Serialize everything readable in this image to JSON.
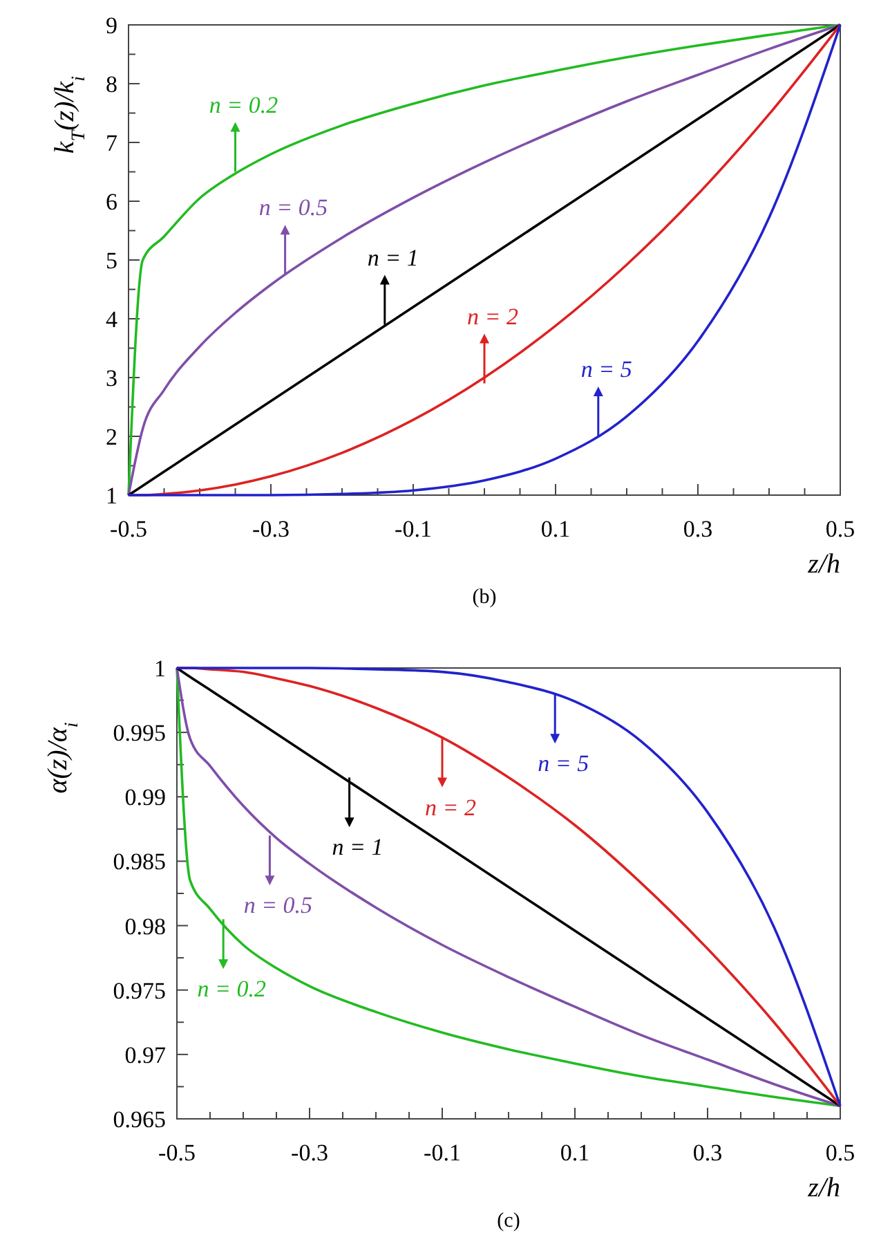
{
  "chart_data": [
    {
      "type": "line",
      "xlabel": "z/h",
      "ylabel": "k$_{T}$(z)/k$_{i}$",
      "x": [
        -0.5,
        -0.48,
        -0.45,
        -0.4,
        -0.35,
        -0.3,
        -0.2,
        -0.1,
        0,
        0.1,
        0.2,
        0.3,
        0.4,
        0.5
      ],
      "xlim": [
        -0.5,
        0.5
      ],
      "ylim": [
        1,
        9
      ],
      "xticks": [
        -0.5,
        {
          "value": -0.45,
          "label": null
        },
        {
          "value": -0.4,
          "label": null
        },
        {
          "value": -0.35,
          "label": null
        },
        -0.3,
        {
          "value": -0.25,
          "label": null
        },
        {
          "value": -0.2,
          "label": null
        },
        {
          "value": -0.15,
          "label": null
        },
        -0.1,
        {
          "value": -0.05,
          "label": null
        },
        {
          "value": 0,
          "label": null
        },
        {
          "value": 0.05,
          "label": null
        },
        0.1,
        {
          "value": 0.15,
          "label": null
        },
        {
          "value": 0.2,
          "label": null
        },
        {
          "value": 0.25,
          "label": null
        },
        0.3,
        {
          "value": 0.35,
          "label": null
        },
        {
          "value": 0.4,
          "label": null
        },
        {
          "value": 0.45,
          "label": null
        },
        0.5
      ],
      "yticks": [
        1,
        {
          "value": 1.5,
          "label": null
        },
        2,
        {
          "value": 2.5,
          "label": null
        },
        3,
        {
          "value": 3.5,
          "label": null
        },
        4,
        {
          "value": 4.5,
          "label": null
        },
        5,
        {
          "value": 5.5,
          "label": null
        },
        6,
        {
          "value": 6.5,
          "label": null
        },
        7,
        {
          "value": 7.5,
          "label": null
        },
        8,
        {
          "value": 8.5,
          "label": null
        },
        9
      ],
      "series": [
        {
          "color": "#22bb22",
          "values": [
            1,
            5.0,
            5.4,
            6.05,
            6.47,
            6.8,
            7.29,
            7.66,
            7.97,
            8.22,
            8.45,
            8.65,
            8.83,
            9
          ]
        },
        {
          "color": "#7f4fa8",
          "values": [
            1,
            2.13,
            2.79,
            3.53,
            4.1,
            4.58,
            5.38,
            6.06,
            6.66,
            7.2,
            7.7,
            8.15,
            8.59,
            9
          ]
        },
        {
          "color": "#000000",
          "values": [
            1,
            1.16,
            1.4,
            1.8,
            2.2,
            2.6,
            3.4,
            4.2,
            5,
            5.8,
            6.6,
            7.4,
            8.2,
            9
          ]
        },
        {
          "color": "#dd2222",
          "values": [
            1,
            1,
            1.02,
            1.08,
            1.18,
            1.32,
            1.72,
            2.28,
            3,
            3.88,
            4.92,
            6.12,
            7.48,
            9
          ]
        },
        {
          "color": "#2222cc",
          "values": [
            1,
            1,
            1,
            1,
            1,
            1,
            1.02,
            1.08,
            1.25,
            1.62,
            2.34,
            3.62,
            5.72,
            9
          ]
        }
      ],
      "annotations": [
        {
          "text": "n = 0.2",
          "x": -0.35,
          "y": 6.5
        },
        {
          "text": "n = 0.5",
          "x": -0.28,
          "y": 4.75
        },
        {
          "text": "n = 1",
          "x": -0.14,
          "y": 3.9
        },
        {
          "text": "n = 2",
          "x": 0.0,
          "y": 2.9
        },
        {
          "text": "n = 5",
          "x": 0.16,
          "y": 2.0
        },
        "(b)"
      ]
    },
    {
      "type": "line",
      "xlabel": "z/h",
      "ylabel": "α(z)/α$_{i}$",
      "x": [
        -0.5,
        -0.48,
        -0.45,
        -0.4,
        -0.35,
        -0.3,
        -0.2,
        -0.1,
        0,
        0.1,
        0.2,
        0.3,
        0.4,
        0.5
      ],
      "xlim": [
        -0.5,
        0.5
      ],
      "ylim": [
        0.965,
        1
      ],
      "xticks": [
        -0.5,
        {
          "value": -0.45,
          "label": null
        },
        {
          "value": -0.4,
          "label": null
        },
        {
          "value": -0.35,
          "label": null
        },
        -0.3,
        {
          "value": -0.25,
          "label": null
        },
        {
          "value": -0.2,
          "label": null
        },
        {
          "value": -0.15,
          "label": null
        },
        -0.1,
        {
          "value": -0.05,
          "label": null
        },
        {
          "value": 0,
          "label": null
        },
        {
          "value": 0.05,
          "label": null
        },
        0.1,
        {
          "value": 0.15,
          "label": null
        },
        {
          "value": 0.2,
          "label": null
        },
        {
          "value": 0.25,
          "label": null
        },
        0.3,
        {
          "value": 0.35,
          "label": null
        },
        {
          "value": 0.4,
          "label": null
        },
        {
          "value": 0.45,
          "label": null
        },
        0.5
      ],
      "yticks": [
        0.965,
        {
          "value": 0.9675,
          "label": null
        },
        0.97,
        {
          "value": 0.9725,
          "label": null
        },
        0.975,
        {
          "value": 0.9775,
          "label": null
        },
        0.98,
        {
          "value": 0.9825,
          "label": null
        },
        0.985,
        {
          "value": 0.9875,
          "label": null
        },
        0.99,
        {
          "value": 0.9925,
          "label": null
        },
        0.995,
        {
          "value": 0.9975,
          "label": null
        },
        1
      ],
      "series": [
        {
          "color": "#22bb22",
          "values": [
            1,
            0.9835,
            0.9813,
            0.9785,
            0.9767,
            0.9753,
            0.9733,
            0.9717,
            0.9704,
            0.9693,
            0.9683,
            0.9675,
            0.9667,
            0.966
          ]
        },
        {
          "color": "#7f4fa8",
          "values": [
            1,
            0.9945,
            0.9924,
            0.9893,
            0.9868,
            0.9848,
            0.9814,
            0.9785,
            0.976,
            0.9737,
            0.9715,
            0.9696,
            0.9677,
            0.966
          ]
        },
        {
          "color": "#000000",
          "values": [
            1,
            0.9993,
            0.9983,
            0.9966,
            0.9949,
            0.9932,
            0.9898,
            0.9864,
            0.983,
            0.9796,
            0.9762,
            0.9728,
            0.9694,
            0.966
          ]
        },
        {
          "color": "#dd2222",
          "values": [
            1,
            1,
            0.9999,
            0.9997,
            0.9992,
            0.9986,
            0.9969,
            0.9946,
            0.9915,
            0.9878,
            0.9833,
            0.9782,
            0.9725,
            0.966
          ]
        },
        {
          "color": "#2222cc",
          "values": [
            1,
            1,
            1,
            1,
            1,
            1,
            0.9999,
            0.9997,
            0.9989,
            0.9974,
            0.9943,
            0.9888,
            0.9799,
            0.966
          ]
        }
      ],
      "annotations": [
        {
          "text": "n = 0.2",
          "x": -0.43,
          "y": 0.9805
        },
        {
          "text": "n = 0.5",
          "x": -0.36,
          "y": 0.987
        },
        {
          "text": "n = 1",
          "x": -0.24,
          "y": 0.9915
        },
        {
          "text": "n = 2",
          "x": -0.1,
          "y": 0.9946
        },
        {
          "text": "n = 5",
          "x": 0.07,
          "y": 0.998
        },
        "(c)"
      ]
    }
  ]
}
